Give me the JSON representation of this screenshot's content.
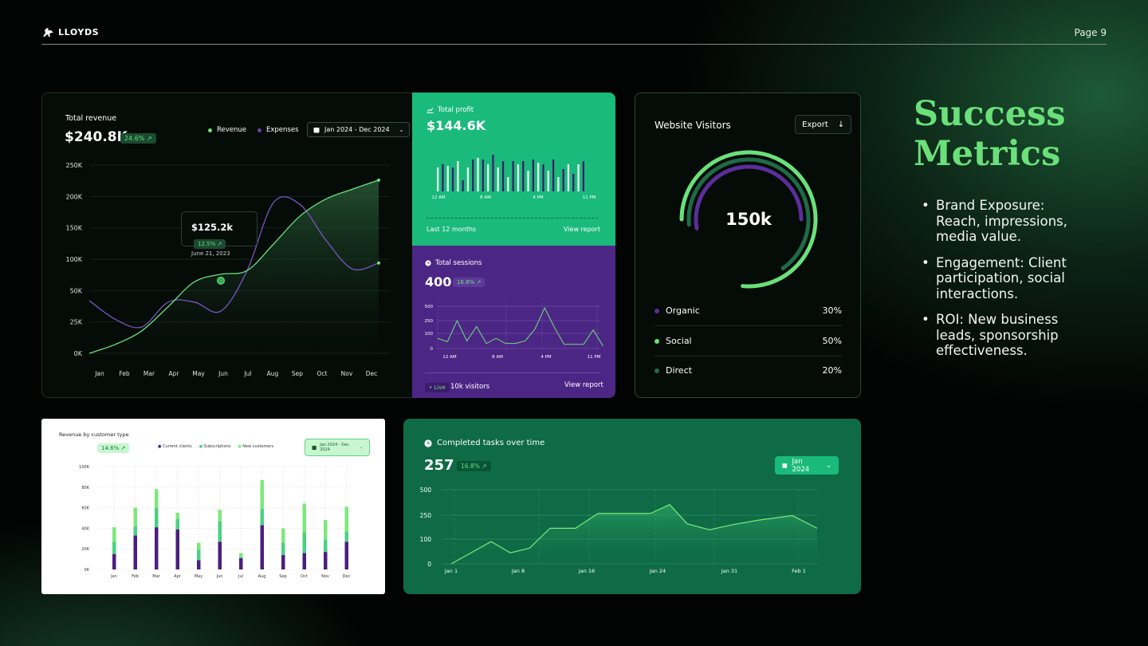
{
  "header": {
    "brand": "LLOYDS",
    "page": "Page 9"
  },
  "title": {
    "line1": "Success",
    "line2": "Metrics"
  },
  "bullets": [
    "Brand Exposure: Reach, impressions, media value.",
    "Engagement: Client participation, social interactions.",
    "ROI: New business leads, sponsorship effectiveness."
  ],
  "revenue_card": {
    "label": "Total revenue",
    "value": "$240.8K",
    "change": "24.6% ↗",
    "legend_revenue": "Revenue",
    "legend_expenses": "Expenses",
    "date_range": "Jan 2024 - Dec 2024",
    "tooltip_value": "$125.2k",
    "tooltip_change": "12.5% ↗",
    "tooltip_date": "June 21, 2023",
    "colors": {
      "revenue": "#6be07a",
      "expenses": "#6a3fae"
    }
  },
  "profit_card": {
    "label": "Total profit",
    "value": "$144.6K",
    "ticks": [
      "12 AM",
      "8 AM",
      "4 PM",
      "11 PM"
    ],
    "footer_left": "Last 12 months",
    "footer_right": "View report"
  },
  "sessions_card": {
    "label": "Total sessions",
    "value": "400",
    "change": "16.8% ↗",
    "yticks": [
      "500",
      "250",
      "100",
      "0"
    ],
    "xticks": [
      "12 AM",
      "8 AM",
      "4 PM",
      "11 PM"
    ],
    "live": "• Live",
    "visitors": "10k visitors",
    "footer_right": "View report"
  },
  "visitors_card": {
    "title": "Website Visitors",
    "export": "Export",
    "center": "150k",
    "rows": [
      {
        "label": "Organic",
        "value": "30%",
        "color": "#5b2e9a"
      },
      {
        "label": "Social",
        "value": "50%",
        "color": "#6be07a"
      },
      {
        "label": "Direct",
        "value": "20%",
        "color": "#1f6b47"
      }
    ]
  },
  "customer_card": {
    "title": "Revenue by customer type",
    "change": "14.6% ↗",
    "legend": [
      "Current clients",
      "Subscriptions",
      "New customers"
    ],
    "date_range": "Jan 2024 - Dec 2024",
    "colors": [
      "#4a1f7e",
      "#4bd182",
      "#7de87a"
    ]
  },
  "tasks_card": {
    "title": "Completed tasks over time",
    "value": "257",
    "change": "16.8% ↗",
    "date": "Jan 2024"
  },
  "chart_data": [
    {
      "type": "line",
      "id": "total-revenue",
      "categories": [
        "Jan",
        "Feb",
        "Mar",
        "Apr",
        "May",
        "Jun",
        "Jul",
        "Aug",
        "Sep",
        "Oct",
        "Nov",
        "Dec"
      ],
      "yticks": [
        "250K",
        "200K",
        "150K",
        "100K",
        "50K",
        "25K",
        "0K"
      ],
      "series": [
        {
          "name": "Revenue",
          "values": [
            0,
            12,
            30,
            62,
            95,
            105,
            110,
            145,
            182,
            205,
            218,
            230
          ]
        },
        {
          "name": "Expenses",
          "values": [
            70,
            45,
            35,
            68,
            68,
            56,
            110,
            200,
            198,
            150,
            112,
            120
          ]
        }
      ]
    },
    {
      "type": "bar",
      "id": "total-profit",
      "series": [
        {
          "values": [
            30,
            34,
            32,
            30,
            38,
            14,
            30,
            40,
            42,
            40,
            34,
            46,
            30,
            38,
            18,
            38,
            34,
            38,
            26,
            40,
            36,
            34,
            26,
            40,
            18,
            28,
            34,
            22,
            34,
            38
          ]
        }
      ]
    },
    {
      "type": "line",
      "id": "total-sessions",
      "ylim": [
        0,
        500
      ],
      "series": [
        {
          "values": [
            120,
            80,
            330,
            90,
            260,
            60,
            120,
            60,
            60,
            90,
            230,
            480,
            250,
            50,
            50,
            50,
            220,
            30
          ]
        }
      ]
    },
    {
      "type": "pie",
      "id": "website-visitors",
      "categories": [
        "Organic",
        "Social",
        "Direct"
      ],
      "values": [
        30,
        50,
        20
      ]
    },
    {
      "type": "bar",
      "id": "revenue-by-customer-type",
      "categories": [
        "Jan",
        "Feb",
        "Mar",
        "Apr",
        "May",
        "Jun",
        "Jul",
        "Aug",
        "Sep",
        "Oct",
        "Nov",
        "Dec"
      ],
      "yticks": [
        "100K",
        "80K",
        "60K",
        "40K",
        "20K",
        "0K"
      ],
      "ylim": [
        0,
        100
      ],
      "series": [
        {
          "name": "Current clients",
          "values": [
            15,
            33,
            41,
            39,
            9,
            27,
            11,
            43,
            14,
            16,
            17,
            27
          ]
        },
        {
          "name": "Subscriptions",
          "values": [
            12,
            9,
            19,
            10,
            10,
            20,
            1,
            16,
            12,
            20,
            12,
            10
          ]
        },
        {
          "name": "New customers",
          "values": [
            14,
            18,
            18,
            6,
            7,
            11,
            4,
            28,
            14,
            28,
            19,
            24
          ]
        }
      ]
    },
    {
      "type": "area",
      "id": "completed-tasks",
      "xticks": [
        "Jan 1",
        "Jan 8",
        "Jan 16",
        "Jan 24",
        "Jan 31",
        "Feb 1"
      ],
      "yticks": [
        "500",
        "250",
        "100",
        "0"
      ],
      "ylim": [
        0,
        500
      ],
      "series": [
        {
          "values": [
            0,
            150,
            75,
            105,
            240,
            240,
            340,
            340,
            340,
            400,
            270,
            230,
            265,
            295,
            325,
            240
          ]
        }
      ]
    }
  ]
}
